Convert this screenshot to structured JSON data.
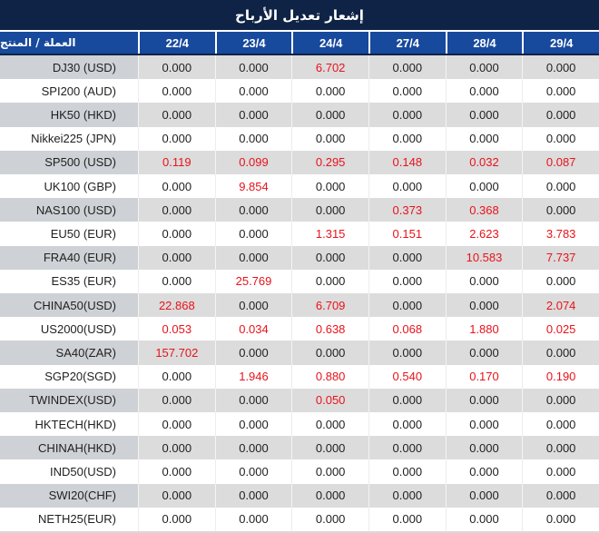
{
  "title": "إشعار تعديل الأرباح",
  "table": {
    "product_header": "العملة / المنتج",
    "date_columns": [
      "22/4",
      "23/4",
      "24/4",
      "27/4",
      "28/4",
      "29/4"
    ],
    "zero_value": "0.000",
    "rows": [
      {
        "product": "DJ30 (USD)",
        "values": [
          "0.000",
          "0.000",
          "6.702",
          "0.000",
          "0.000",
          "0.000"
        ]
      },
      {
        "product": "SPI200 (AUD)",
        "values": [
          "0.000",
          "0.000",
          "0.000",
          "0.000",
          "0.000",
          "0.000"
        ]
      },
      {
        "product": "HK50 (HKD)",
        "values": [
          "0.000",
          "0.000",
          "0.000",
          "0.000",
          "0.000",
          "0.000"
        ]
      },
      {
        "product": "Nikkei225 (JPN)",
        "values": [
          "0.000",
          "0.000",
          "0.000",
          "0.000",
          "0.000",
          "0.000"
        ]
      },
      {
        "product": "SP500 (USD)",
        "values": [
          "0.119",
          "0.099",
          "0.295",
          "0.148",
          "0.032",
          "0.087"
        ]
      },
      {
        "product": "UK100 (GBP)",
        "values": [
          "0.000",
          "9.854",
          "0.000",
          "0.000",
          "0.000",
          "0.000"
        ]
      },
      {
        "product": "NAS100 (USD)",
        "values": [
          "0.000",
          "0.000",
          "0.000",
          "0.373",
          "0.368",
          "0.000"
        ]
      },
      {
        "product": "EU50 (EUR)",
        "values": [
          "0.000",
          "0.000",
          "1.315",
          "0.151",
          "2.623",
          "3.783"
        ]
      },
      {
        "product": "FRA40 (EUR)",
        "values": [
          "0.000",
          "0.000",
          "0.000",
          "0.000",
          "10.583",
          "7.737"
        ]
      },
      {
        "product": "ES35 (EUR)",
        "values": [
          "0.000",
          "25.769",
          "0.000",
          "0.000",
          "0.000",
          "0.000"
        ]
      },
      {
        "product": "CHINA50(USD)",
        "values": [
          "22.868",
          "0.000",
          "6.709",
          "0.000",
          "0.000",
          "2.074"
        ]
      },
      {
        "product": "US2000(USD)",
        "values": [
          "0.053",
          "0.034",
          "0.638",
          "0.068",
          "1.880",
          "0.025"
        ]
      },
      {
        "product": "SA40(ZAR)",
        "values": [
          "157.702",
          "0.000",
          "0.000",
          "0.000",
          "0.000",
          "0.000"
        ]
      },
      {
        "product": "SGP20(SGD)",
        "values": [
          "0.000",
          "1.946",
          "0.880",
          "0.540",
          "0.170",
          "0.190"
        ]
      },
      {
        "product": "TWINDEX(USD)",
        "values": [
          "0.000",
          "0.000",
          "0.050",
          "0.000",
          "0.000",
          "0.000"
        ]
      },
      {
        "product": "HKTECH(HKD)",
        "values": [
          "0.000",
          "0.000",
          "0.000",
          "0.000",
          "0.000",
          "0.000"
        ]
      },
      {
        "product": "CHINAH(HKD)",
        "values": [
          "0.000",
          "0.000",
          "0.000",
          "0.000",
          "0.000",
          "0.000"
        ]
      },
      {
        "product": "IND50(USD)",
        "values": [
          "0.000",
          "0.000",
          "0.000",
          "0.000",
          "0.000",
          "0.000"
        ]
      },
      {
        "product": "SWI20(CHF)",
        "values": [
          "0.000",
          "0.000",
          "0.000",
          "0.000",
          "0.000",
          "0.000"
        ]
      },
      {
        "product": "NETH25(EUR)",
        "values": [
          "0.000",
          "0.000",
          "0.000",
          "0.000",
          "0.000",
          "0.000"
        ]
      }
    ]
  },
  "colors": {
    "title_bg": "#0e2345",
    "header_bg": "#17499d",
    "label_alt_bg": "#ced2d6",
    "cell_alt_bg": "#dcdcdc",
    "zero_text": "#1f1f1f",
    "nonzero_text": "#e8131b"
  }
}
